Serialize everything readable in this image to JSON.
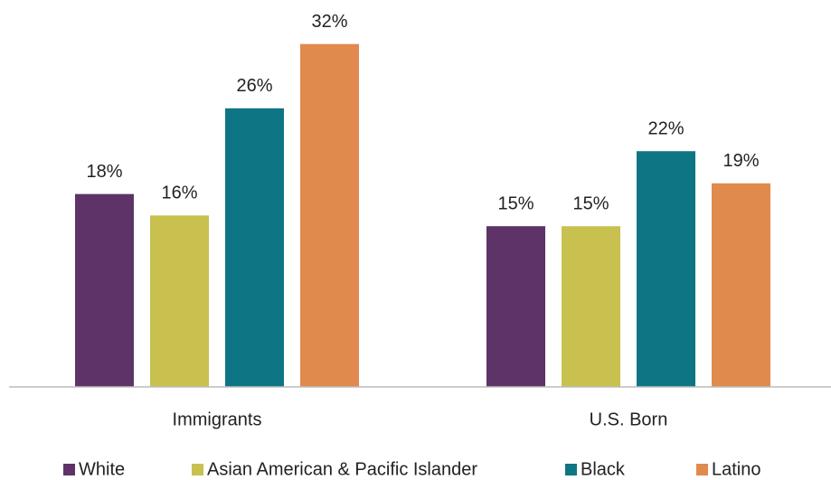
{
  "chart_data": {
    "type": "bar",
    "categories": [
      "Immigrants",
      "U.S. Born"
    ],
    "series": [
      {
        "name": "White",
        "color": "#5e3468",
        "values": [
          18,
          15
        ],
        "value_labels": [
          "18%",
          "15%"
        ]
      },
      {
        "name": "Asian American & Pacific Islander",
        "color": "#c8c150",
        "values": [
          16,
          15
        ],
        "value_labels": [
          "16%",
          "15%"
        ]
      },
      {
        "name": "Black",
        "color": "#0e7584",
        "values": [
          26,
          22
        ],
        "value_labels": [
          "26%",
          "22%"
        ]
      },
      {
        "name": "Latino",
        "color": "#e08a4e",
        "values": [
          32,
          19
        ],
        "value_labels": [
          "32%",
          "19%"
        ]
      }
    ],
    "ylim": [
      0,
      34
    ],
    "legend": "bottom"
  }
}
